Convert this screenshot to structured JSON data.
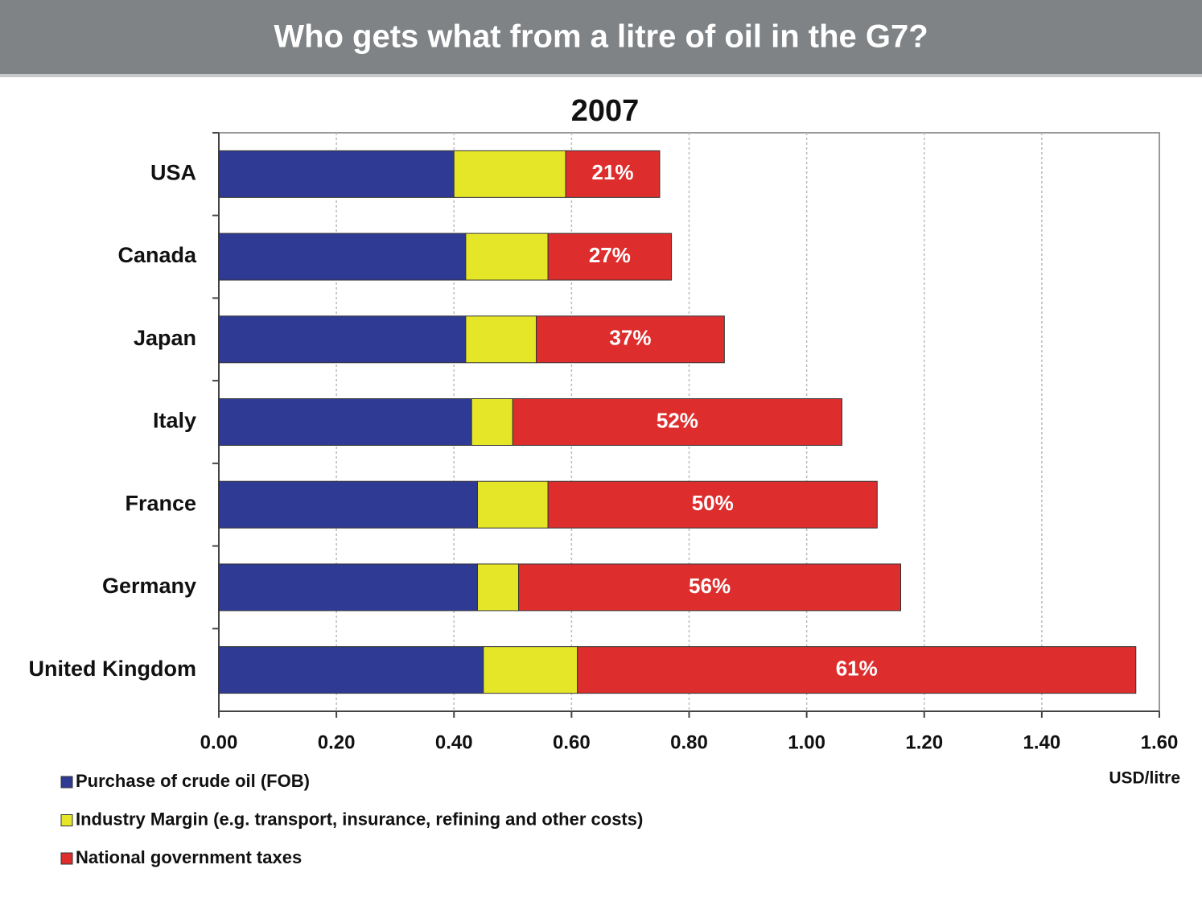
{
  "header": {
    "title": "Who gets what from a litre of oil in the G7?"
  },
  "chart_data": {
    "type": "stacked-bar-horizontal",
    "title": "2007",
    "categories": [
      "USA",
      "Canada",
      "Japan",
      "Italy",
      "France",
      "Germany",
      "United Kingdom"
    ],
    "series": [
      {
        "name": "Purchase of crude oil (FOB)",
        "color": "#2e3a94",
        "values": [
          0.4,
          0.42,
          0.42,
          0.43,
          0.44,
          0.44,
          0.45
        ]
      },
      {
        "name": "Industry Margin (e.g. transport, insurance, refining and other costs)",
        "color": "#e6e628",
        "values": [
          0.19,
          0.14,
          0.12,
          0.07,
          0.12,
          0.07,
          0.16
        ]
      },
      {
        "name": "National government taxes",
        "color": "#de2d2d",
        "values": [
          0.16,
          0.21,
          0.32,
          0.56,
          0.56,
          0.65,
          0.95
        ],
        "share_labels": [
          "21%",
          "27%",
          "37%",
          "52%",
          "50%",
          "56%",
          "61%"
        ]
      }
    ],
    "x_label": "USD/litre",
    "xlim": [
      0,
      1.6
    ],
    "xticks": [
      {
        "value": 0,
        "label": "0.00"
      },
      {
        "value": 0.2,
        "label": "0.20"
      },
      {
        "value": 0.4,
        "label": "0.40"
      },
      {
        "value": 0.6,
        "label": "0.60"
      },
      {
        "value": 0.8,
        "label": "0.80"
      },
      {
        "value": 1.0,
        "label": "1.00"
      },
      {
        "value": 1.2,
        "label": "1.20"
      },
      {
        "value": 1.4,
        "label": "1.40"
      },
      {
        "value": 1.6,
        "label": "1.60"
      }
    ],
    "grid": true
  }
}
